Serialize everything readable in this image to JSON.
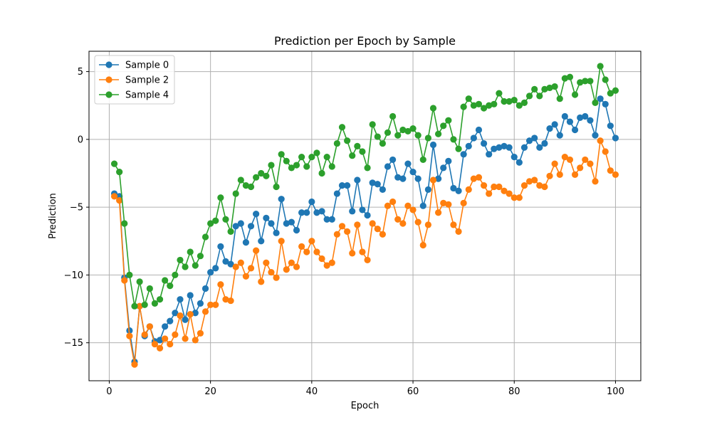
{
  "chart_data": {
    "type": "line",
    "title": "Prediction per Epoch by Sample",
    "xlabel": "Epoch",
    "ylabel": "Prediction",
    "xlim": [
      -4,
      105
    ],
    "ylim": [
      -17.8,
      6.5
    ],
    "xticks": [
      0,
      20,
      40,
      60,
      80,
      100
    ],
    "yticks": [
      -15,
      -10,
      -5,
      0,
      5
    ],
    "grid": true,
    "legend_position": "top-left",
    "series": [
      {
        "name": "Sample 0",
        "color": "#1f77b4",
        "values": [
          -4.0,
          -4.2,
          -10.2,
          -14.1,
          -16.4,
          -12.3,
          -14.5,
          -13.8,
          -14.9,
          -14.8,
          -13.8,
          -13.4,
          -12.8,
          -11.8,
          -13.3,
          -11.5,
          -12.8,
          -12.1,
          -11.0,
          -9.8,
          -9.5,
          -7.9,
          -9.0,
          -9.2,
          -6.4,
          -6.2,
          -7.6,
          -6.4,
          -5.5,
          -7.5,
          -5.8,
          -6.2,
          -6.9,
          -4.4,
          -6.2,
          -6.1,
          -6.7,
          -5.4,
          -5.4,
          -4.6,
          -5.4,
          -5.3,
          -5.9,
          -5.9,
          -4.0,
          -3.4,
          -3.4,
          -5.3,
          -3.0,
          -5.2,
          -5.6,
          -3.2,
          -3.3,
          -3.7,
          -2.0,
          -1.5,
          -2.8,
          -2.9,
          -1.8,
          -2.4,
          -2.9,
          -4.9,
          -3.7,
          -0.4,
          -2.9,
          -2.1,
          -1.6,
          -3.6,
          -3.8,
          -1.1,
          -0.5,
          0.1,
          0.7,
          -0.3,
          -1.1,
          -0.7,
          -0.6,
          -0.5,
          -0.6,
          -1.3,
          -1.7,
          -0.6,
          -0.1,
          0.1,
          -0.6,
          -0.3,
          0.8,
          1.1,
          0.3,
          1.7,
          1.3,
          0.7,
          1.6,
          1.7,
          1.4,
          0.3,
          3.0,
          2.6,
          1.0,
          0.1
        ]
      },
      {
        "name": "Sample 2",
        "color": "#ff7f0e",
        "values": [
          -4.2,
          -4.5,
          -10.4,
          -14.5,
          -16.6,
          -12.3,
          -14.4,
          -13.8,
          -15.1,
          -15.4,
          -14.7,
          -15.1,
          -14.4,
          -13.0,
          -14.7,
          -12.9,
          -14.8,
          -14.3,
          -12.7,
          -12.2,
          -12.2,
          -10.7,
          -11.8,
          -11.9,
          -9.4,
          -9.1,
          -10.1,
          -9.5,
          -8.2,
          -10.5,
          -9.1,
          -9.8,
          -10.2,
          -7.5,
          -9.6,
          -9.1,
          -9.4,
          -7.9,
          -8.3,
          -7.5,
          -8.3,
          -8.8,
          -9.3,
          -9.1,
          -7.0,
          -6.4,
          -6.8,
          -8.4,
          -6.3,
          -8.3,
          -8.9,
          -6.2,
          -6.6,
          -7.0,
          -4.9,
          -4.6,
          -5.9,
          -6.2,
          -4.9,
          -5.2,
          -6.1,
          -7.8,
          -6.3,
          -3.0,
          -5.4,
          -4.7,
          -4.8,
          -6.3,
          -6.8,
          -4.7,
          -3.7,
          -2.9,
          -2.8,
          -3.4,
          -4.0,
          -3.5,
          -3.5,
          -3.8,
          -4.0,
          -4.3,
          -4.3,
          -3.4,
          -3.1,
          -3.0,
          -3.4,
          -3.5,
          -2.7,
          -1.8,
          -2.6,
          -1.3,
          -1.5,
          -2.6,
          -2.1,
          -1.5,
          -1.8,
          -3.1,
          -0.1,
          -0.9,
          -2.3,
          -2.6
        ]
      },
      {
        "name": "Sample 4",
        "color": "#2ca02c",
        "values": [
          -1.8,
          -2.4,
          -6.2,
          -10.0,
          -12.3,
          -10.5,
          -12.2,
          -11.0,
          -12.1,
          -11.8,
          -10.4,
          -10.8,
          -10.0,
          -8.9,
          -9.4,
          -8.3,
          -9.3,
          -8.6,
          -7.2,
          -6.2,
          -6.0,
          -4.3,
          -5.9,
          -6.8,
          -4.0,
          -3.0,
          -3.4,
          -3.5,
          -2.8,
          -2.5,
          -2.7,
          -1.9,
          -3.5,
          -1.1,
          -1.6,
          -2.1,
          -1.9,
          -1.3,
          -2.0,
          -1.3,
          -1.0,
          -2.5,
          -1.3,
          -2.0,
          -0.3,
          0.9,
          -0.1,
          -1.2,
          -0.5,
          -0.9,
          -2.1,
          1.1,
          0.2,
          -0.3,
          0.5,
          1.7,
          0.3,
          0.7,
          0.6,
          0.8,
          0.3,
          -1.5,
          0.1,
          2.3,
          0.4,
          1.0,
          1.4,
          0.0,
          -0.7,
          2.4,
          3.0,
          2.5,
          2.6,
          2.3,
          2.5,
          2.6,
          3.4,
          2.8,
          2.8,
          2.9,
          2.5,
          2.7,
          3.2,
          3.7,
          3.2,
          3.7,
          3.8,
          3.9,
          3.0,
          4.5,
          4.6,
          3.3,
          4.2,
          4.3,
          4.3,
          2.7,
          5.4,
          4.4,
          3.4,
          3.6
        ]
      }
    ]
  }
}
